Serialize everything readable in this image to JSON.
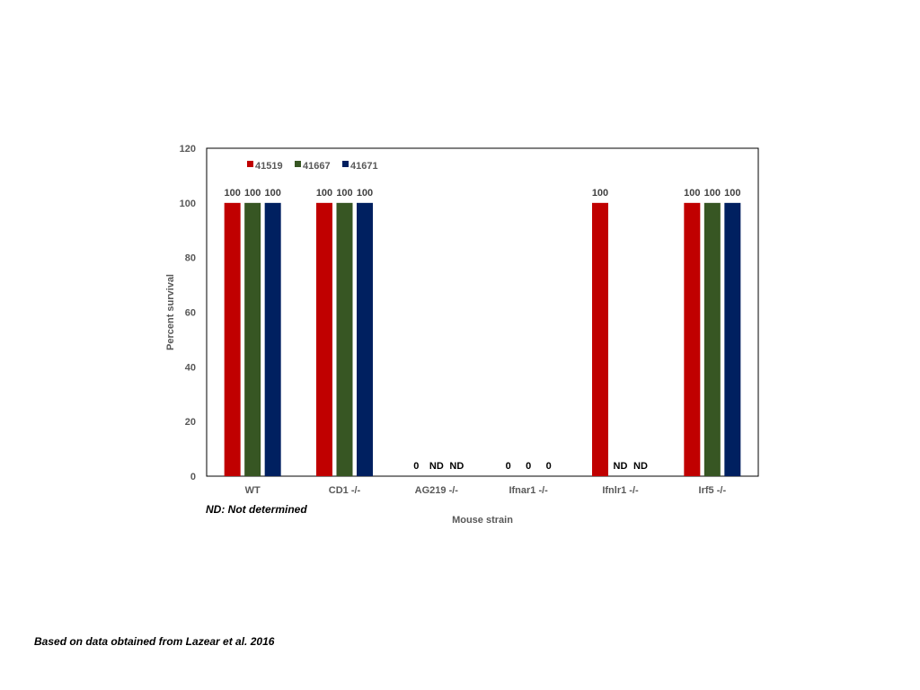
{
  "chart_data": {
    "type": "bar",
    "title": "",
    "xlabel": "Mouse strain",
    "ylabel": "Percent survival",
    "ylim": [
      0,
      120
    ],
    "yticks": [
      0,
      20,
      40,
      60,
      80,
      100,
      120
    ],
    "categories": [
      "WT",
      "CD1 -/-",
      "AG219 -/-",
      "Ifnar1 -/-",
      "Ifnlr1  -/-",
      "Irf5 -/-"
    ],
    "series": [
      {
        "name": "41519",
        "color": "#c00000",
        "values": [
          100,
          100,
          0,
          0,
          100,
          100
        ],
        "labels": [
          "100",
          "100",
          "0",
          "0",
          "100",
          "100"
        ]
      },
      {
        "name": "41667",
        "color": "#375623",
        "values": [
          100,
          100,
          null,
          0,
          null,
          100
        ],
        "labels": [
          "100",
          "100",
          "ND",
          "0",
          "ND",
          "100"
        ]
      },
      {
        "name": "41671",
        "color": "#002060",
        "values": [
          100,
          100,
          null,
          0,
          null,
          100
        ],
        "labels": [
          "100",
          "100",
          "ND",
          "0",
          "ND",
          "100"
        ]
      }
    ],
    "legend_position": "top-left",
    "grid": false
  },
  "notes": {
    "nd": "ND: Not determined",
    "source": "Based on data obtained from Lazear et al. 2016"
  }
}
